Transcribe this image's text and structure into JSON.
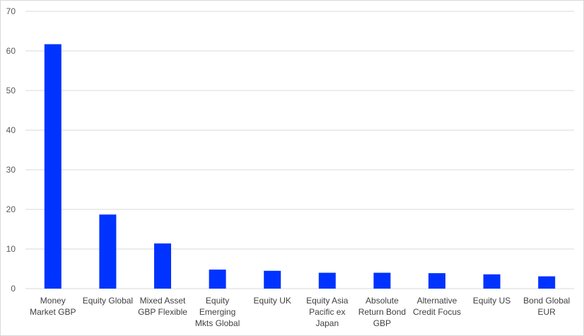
{
  "chart_data": {
    "type": "bar",
    "title": "",
    "xlabel": "",
    "ylabel": "",
    "ylim": [
      0,
      70
    ],
    "yticks": [
      0,
      10,
      20,
      30,
      40,
      50,
      60,
      70
    ],
    "grid": true,
    "legend": "none",
    "bar_color": "#0033ff",
    "categories": [
      [
        "Money",
        "Market GBP"
      ],
      [
        "Equity Global"
      ],
      [
        "Mixed Asset",
        "GBP Flexible"
      ],
      [
        "Equity",
        "Emerging",
        "Mkts Global"
      ],
      [
        "Equity UK"
      ],
      [
        "Equity Asia",
        "Pacific ex",
        "Japan"
      ],
      [
        "Absolute",
        "Return Bond",
        "GBP"
      ],
      [
        "Alternative",
        "Credit Focus"
      ],
      [
        "Equity US"
      ],
      [
        "Bond Global",
        "EUR"
      ]
    ],
    "values": [
      61.7,
      18.7,
      11.4,
      4.8,
      4.5,
      4.0,
      4.0,
      3.9,
      3.6,
      3.1
    ]
  }
}
